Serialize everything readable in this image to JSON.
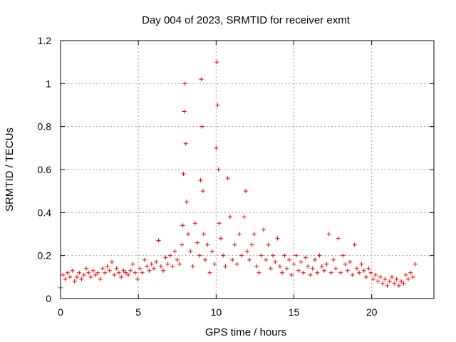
{
  "chart_data": {
    "type": "scatter",
    "title": "Day 004 of 2023, SRMTID for receiver exmt",
    "xlabel": "GPS time / hours",
    "ylabel": "SRMTID / TECUs",
    "xlim": [
      0,
      24
    ],
    "ylim": [
      0,
      1.2
    ],
    "xticks": [
      0,
      5,
      10,
      15,
      20
    ],
    "xtick_labels": [
      "0",
      "5",
      "10",
      "15",
      "20"
    ],
    "yticks": [
      0,
      0.2,
      0.4,
      0.6,
      0.8,
      1,
      1.2
    ],
    "ytick_labels": [
      "0",
      "0.2",
      "0.4",
      "0.6",
      "0.8",
      "1",
      "1.2"
    ],
    "grid": true,
    "marker": "+",
    "color": "#ff0000",
    "series": [
      {
        "name": "SRMTID",
        "x": [
          0.0,
          0.15,
          0.3,
          0.45,
          0.6,
          0.75,
          0.9,
          1.05,
          1.2,
          1.35,
          1.5,
          1.65,
          1.8,
          1.95,
          2.1,
          2.25,
          2.4,
          2.55,
          2.7,
          2.85,
          3.0,
          3.15,
          3.3,
          3.45,
          3.6,
          3.75,
          3.9,
          4.05,
          4.2,
          4.35,
          4.5,
          4.65,
          4.8,
          4.95,
          5.1,
          5.25,
          5.4,
          5.55,
          5.7,
          5.85,
          6.0,
          6.15,
          6.3,
          6.45,
          6.6,
          6.75,
          6.9,
          7.05,
          7.2,
          7.35,
          7.5,
          7.65,
          7.8,
          7.85,
          7.9,
          7.95,
          8.0,
          8.05,
          8.1,
          8.2,
          8.35,
          8.5,
          8.65,
          8.8,
          8.95,
          9.0,
          9.05,
          9.1,
          9.15,
          9.2,
          9.3,
          9.45,
          9.6,
          9.75,
          9.9,
          10.0,
          10.05,
          10.1,
          10.15,
          10.2,
          10.3,
          10.45,
          10.6,
          10.75,
          10.9,
          11.05,
          11.2,
          11.35,
          11.5,
          11.65,
          11.8,
          11.9,
          12.0,
          12.15,
          12.3,
          12.45,
          12.6,
          12.75,
          12.9,
          13.05,
          13.2,
          13.35,
          13.5,
          13.65,
          13.8,
          13.95,
          14.1,
          14.25,
          14.4,
          14.55,
          14.7,
          14.85,
          15.0,
          15.15,
          15.3,
          15.45,
          15.6,
          15.75,
          15.9,
          16.05,
          16.2,
          16.35,
          16.5,
          16.65,
          16.8,
          16.95,
          17.1,
          17.25,
          17.4,
          17.55,
          17.7,
          17.85,
          18.0,
          18.15,
          18.3,
          18.45,
          18.6,
          18.75,
          18.9,
          19.05,
          19.2,
          19.35,
          19.5,
          19.65,
          19.8,
          19.95,
          20.1,
          20.25,
          20.4,
          20.55,
          20.7,
          20.85,
          21.0,
          21.15,
          21.3,
          21.45,
          21.6,
          21.75,
          21.9,
          22.05,
          22.2,
          22.35,
          22.5,
          22.65,
          22.8
        ],
        "y": [
          0.05,
          0.11,
          0.09,
          0.12,
          0.1,
          0.13,
          0.08,
          0.1,
          0.12,
          0.09,
          0.11,
          0.14,
          0.12,
          0.1,
          0.13,
          0.11,
          0.12,
          0.09,
          0.14,
          0.12,
          0.15,
          0.13,
          0.17,
          0.11,
          0.14,
          0.12,
          0.1,
          0.13,
          0.12,
          0.11,
          0.13,
          0.16,
          0.12,
          0.09,
          0.14,
          0.12,
          0.18,
          0.15,
          0.13,
          0.16,
          0.14,
          0.17,
          0.27,
          0.15,
          0.13,
          0.19,
          0.16,
          0.2,
          0.15,
          0.22,
          0.18,
          0.16,
          0.25,
          0.34,
          0.58,
          0.87,
          1.0,
          0.72,
          0.45,
          0.3,
          0.22,
          0.15,
          0.35,
          0.26,
          0.2,
          0.55,
          1.02,
          0.8,
          0.5,
          0.3,
          0.18,
          0.25,
          0.12,
          0.22,
          0.16,
          0.7,
          1.1,
          0.9,
          0.6,
          0.35,
          0.28,
          0.2,
          0.15,
          0.56,
          0.38,
          0.18,
          0.25,
          0.16,
          0.3,
          0.2,
          0.38,
          0.5,
          0.22,
          0.18,
          0.25,
          0.3,
          0.15,
          0.12,
          0.2,
          0.32,
          0.18,
          0.25,
          0.14,
          0.2,
          0.17,
          0.28,
          0.15,
          0.12,
          0.2,
          0.14,
          0.18,
          0.11,
          0.16,
          0.2,
          0.13,
          0.17,
          0.12,
          0.19,
          0.15,
          0.11,
          0.14,
          0.18,
          0.12,
          0.2,
          0.15,
          0.13,
          0.16,
          0.3,
          0.12,
          0.18,
          0.14,
          0.28,
          0.12,
          0.2,
          0.16,
          0.13,
          0.17,
          0.11,
          0.25,
          0.14,
          0.12,
          0.16,
          0.13,
          0.1,
          0.14,
          0.12,
          0.09,
          0.11,
          0.08,
          0.1,
          0.07,
          0.09,
          0.06,
          0.08,
          0.1,
          0.07,
          0.09,
          0.06,
          0.08,
          0.07,
          0.11,
          0.09,
          0.12,
          0.1,
          0.16
        ]
      }
    ]
  }
}
